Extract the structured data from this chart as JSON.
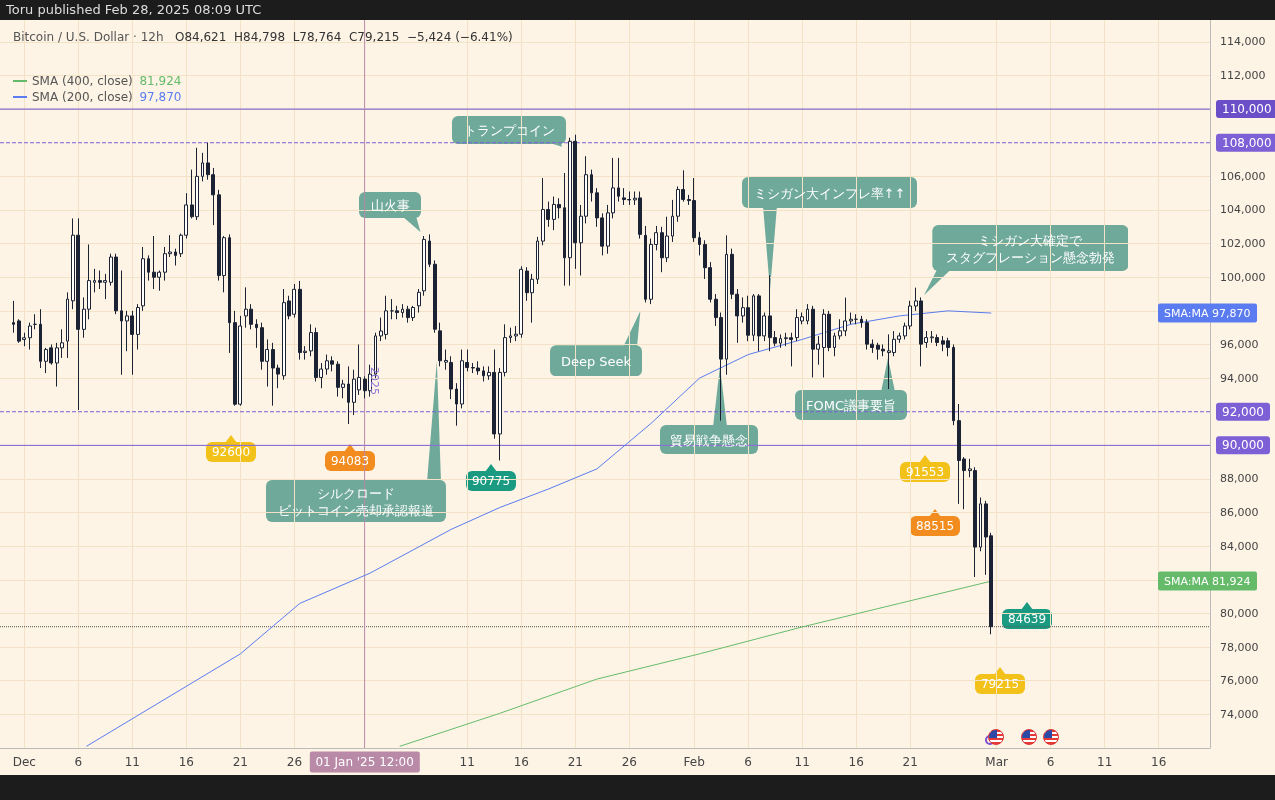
{
  "chart_data": {
    "type": "candlestick",
    "title": "Bitcoin / U.S. Dollar · 12h",
    "subtitle": "O84,621  H84,798  L78,764  C79,215  −5,424 (−6.41%)",
    "x": [
      "2024-11-30T00:00",
      "2024-11-30T12:00",
      "2024-12-01T00:00",
      "2024-12-01T12:00",
      "2024-12-02T00:00",
      "2024-12-02T12:00",
      "2024-12-03T00:00",
      "2024-12-03T12:00",
      "2024-12-04T00:00",
      "2024-12-04T12:00",
      "2024-12-05T00:00",
      "2024-12-05T12:00",
      "2024-12-06T00:00",
      "2024-12-06T12:00",
      "2024-12-07T00:00",
      "2024-12-07T12:00",
      "2024-12-08T00:00",
      "2024-12-08T12:00",
      "2024-12-09T00:00",
      "2024-12-09T12:00",
      "2024-12-10T00:00",
      "2024-12-10T12:00",
      "2024-12-11T00:00",
      "2024-12-11T12:00",
      "2024-12-12T00:00",
      "2024-12-12T12:00",
      "2024-12-13T00:00",
      "2024-12-13T12:00",
      "2024-12-14T00:00",
      "2024-12-14T12:00",
      "2024-12-15T00:00",
      "2024-12-15T12:00",
      "2024-12-16T00:00",
      "2024-12-16T12:00",
      "2024-12-17T00:00",
      "2024-12-17T12:00",
      "2024-12-18T00:00",
      "2024-12-18T12:00",
      "2024-12-19T00:00",
      "2024-12-19T12:00",
      "2024-12-20T00:00",
      "2024-12-20T12:00",
      "2024-12-21T00:00",
      "2024-12-21T12:00",
      "2024-12-22T00:00",
      "2024-12-22T12:00",
      "2024-12-23T00:00",
      "2024-12-23T12:00",
      "2024-12-24T00:00",
      "2024-12-24T12:00",
      "2024-12-25T00:00",
      "2024-12-25T12:00",
      "2024-12-26T00:00",
      "2024-12-26T12:00",
      "2024-12-27T00:00",
      "2024-12-27T12:00",
      "2024-12-28T00:00",
      "2024-12-28T12:00",
      "2024-12-29T00:00",
      "2024-12-29T12:00",
      "2024-12-30T00:00",
      "2024-12-30T12:00",
      "2024-12-31T00:00",
      "2024-12-31T12:00",
      "2025-01-01T00:00",
      "2025-01-01T12:00",
      "2025-01-02T00:00",
      "2025-01-02T12:00",
      "2025-01-03T00:00",
      "2025-01-03T12:00",
      "2025-01-04T00:00",
      "2025-01-04T12:00",
      "2025-01-05T00:00",
      "2025-01-05T12:00",
      "2025-01-06T00:00",
      "2025-01-06T12:00",
      "2025-01-07T00:00",
      "2025-01-07T12:00",
      "2025-01-08T00:00",
      "2025-01-08T12:00",
      "2025-01-09T00:00",
      "2025-01-09T12:00",
      "2025-01-10T00:00",
      "2025-01-10T12:00",
      "2025-01-11T00:00",
      "2025-01-11T12:00",
      "2025-01-12T00:00",
      "2025-01-12T12:00",
      "2025-01-13T00:00",
      "2025-01-13T12:00",
      "2025-01-14T00:00",
      "2025-01-14T12:00",
      "2025-01-15T00:00",
      "2025-01-15T12:00",
      "2025-01-16T00:00",
      "2025-01-16T12:00",
      "2025-01-17T00:00",
      "2025-01-17T12:00",
      "2025-01-18T00:00",
      "2025-01-18T12:00",
      "2025-01-19T00:00",
      "2025-01-19T12:00",
      "2025-01-20T00:00",
      "2025-01-20T12:00",
      "2025-01-21T00:00",
      "2025-01-21T12:00",
      "2025-01-22T00:00",
      "2025-01-22T12:00",
      "2025-01-23T00:00",
      "2025-01-23T12:00",
      "2025-01-24T00:00",
      "2025-01-24T12:00",
      "2025-01-25T00:00",
      "2025-01-25T12:00",
      "2025-01-26T00:00",
      "2025-01-26T12:00",
      "2025-01-27T00:00",
      "2025-01-27T12:00",
      "2025-01-28T00:00",
      "2025-01-28T12:00",
      "2025-01-29T00:00",
      "2025-01-29T12:00",
      "2025-01-30T00:00",
      "2025-01-30T12:00",
      "2025-01-31T00:00",
      "2025-01-31T12:00",
      "2025-02-01T00:00",
      "2025-02-01T12:00",
      "2025-02-02T00:00",
      "2025-02-02T12:00",
      "2025-02-03T00:00",
      "2025-02-03T12:00",
      "2025-02-04T00:00",
      "2025-02-04T12:00",
      "2025-02-05T00:00",
      "2025-02-05T12:00",
      "2025-02-06T00:00",
      "2025-02-06T12:00",
      "2025-02-07T00:00",
      "2025-02-07T12:00",
      "2025-02-08T00:00",
      "2025-02-08T12:00",
      "2025-02-09T00:00",
      "2025-02-09T12:00",
      "2025-02-10T00:00",
      "2025-02-10T12:00",
      "2025-02-11T00:00",
      "2025-02-11T12:00",
      "2025-02-12T00:00",
      "2025-02-12T12:00",
      "2025-02-13T00:00",
      "2025-02-13T12:00",
      "2025-02-14T00:00",
      "2025-02-14T12:00",
      "2025-02-15T00:00",
      "2025-02-15T12:00",
      "2025-02-16T00:00",
      "2025-02-16T12:00",
      "2025-02-17T00:00",
      "2025-02-17T12:00",
      "2025-02-18T00:00",
      "2025-02-18T12:00",
      "2025-02-19T00:00",
      "2025-02-19T12:00",
      "2025-02-20T00:00",
      "2025-02-20T12:00",
      "2025-02-21T00:00",
      "2025-02-21T12:00",
      "2025-02-22T00:00",
      "2025-02-22T12:00",
      "2025-02-23T00:00",
      "2025-02-23T12:00",
      "2025-02-24T00:00",
      "2025-02-24T12:00",
      "2025-02-25T00:00",
      "2025-02-25T12:00",
      "2025-02-26T00:00",
      "2025-02-26T12:00",
      "2025-02-27T00:00",
      "2025-02-27T12:00",
      "2025-02-28T00:00",
      "2025-02-28T12:00"
    ],
    "ohlc": [
      [
        97300,
        98590,
        96700,
        97200
      ],
      [
        97400,
        97500,
        96100,
        96200
      ],
      [
        96300,
        96700,
        95900,
        96400
      ],
      [
        96400,
        97300,
        95700,
        97100
      ],
      [
        97200,
        97800,
        96900,
        97200
      ],
      [
        97200,
        98100,
        94600,
        95000
      ],
      [
        95000,
        95800,
        94300,
        95700
      ],
      [
        95800,
        96000,
        94800,
        94900
      ],
      [
        94900,
        96100,
        93500,
        95800
      ],
      [
        95800,
        96900,
        95200,
        96100
      ],
      [
        96200,
        99100,
        95200,
        98700
      ],
      [
        98600,
        103500,
        98100,
        102500
      ],
      [
        102500,
        103500,
        92100,
        96900
      ],
      [
        96900,
        98800,
        96400,
        98100
      ],
      [
        98100,
        101950,
        97500,
        99800
      ],
      [
        99700,
        100500,
        99100,
        99800
      ],
      [
        99800,
        100400,
        99300,
        99700
      ],
      [
        99700,
        100200,
        98700,
        99800
      ],
      [
        99700,
        101400,
        99500,
        101200
      ],
      [
        101200,
        101400,
        97800,
        98000
      ],
      [
        98000,
        100400,
        94200,
        97400
      ],
      [
        97400,
        98000,
        95600,
        97700
      ],
      [
        97700,
        98000,
        94200,
        96600
      ],
      [
        96600,
        98400,
        95700,
        98200
      ],
      [
        98300,
        101800,
        98000,
        101100
      ],
      [
        101100,
        101300,
        99800,
        100300
      ],
      [
        100300,
        102450,
        99300,
        100000
      ],
      [
        100000,
        100400,
        99200,
        100300
      ],
      [
        100300,
        101800,
        99800,
        101400
      ],
      [
        101400,
        102500,
        101200,
        101500
      ],
      [
        101500,
        101700,
        100700,
        101300
      ],
      [
        101400,
        102600,
        101200,
        102500
      ],
      [
        102500,
        105000,
        102300,
        104300
      ],
      [
        104300,
        106400,
        103500,
        103600
      ],
      [
        103600,
        107700,
        103400,
        106000
      ],
      [
        106000,
        107400,
        105700,
        106800
      ],
      [
        106800,
        108000,
        105800,
        106100
      ],
      [
        106100,
        106500,
        103100,
        104900
      ],
      [
        104900,
        105200,
        99800,
        100100
      ],
      [
        100100,
        102450,
        99100,
        102350
      ],
      [
        102350,
        102550,
        95500,
        97300
      ],
      [
        97300,
        98000,
        92360,
        92450
      ],
      [
        92450,
        97700,
        92360,
        97100
      ],
      [
        97700,
        99400,
        97000,
        98100
      ],
      [
        98100,
        98400,
        96900,
        97200
      ],
      [
        97200,
        97500,
        95800,
        97000
      ],
      [
        97000,
        97300,
        94500,
        95000
      ],
      [
        95000,
        96300,
        93500,
        95700
      ],
      [
        95700,
        96100,
        92360,
        94600
      ],
      [
        94600,
        94800,
        93400,
        94240
      ],
      [
        94140,
        99300,
        93900,
        98490
      ],
      [
        98590,
        98900,
        97500,
        97700
      ],
      [
        97800,
        99600,
        97600,
        99280
      ],
      [
        99280,
        99780,
        95100,
        95520
      ],
      [
        95520,
        95900,
        95100,
        95600
      ],
      [
        95620,
        97200,
        95300,
        96710
      ],
      [
        96710,
        97000,
        93800,
        94040
      ],
      [
        94040,
        94900,
        93400,
        94540
      ],
      [
        94540,
        95400,
        94200,
        95030
      ],
      [
        95030,
        95300,
        94400,
        94830
      ],
      [
        94830,
        95000,
        92900,
        93450
      ],
      [
        93450,
        93900,
        92800,
        93650
      ],
      [
        93650,
        94700,
        91270,
        92560
      ],
      [
        92560,
        94500,
        91800,
        93940
      ],
      [
        93300,
        96000,
        93000,
        94040
      ],
      [
        93940,
        94100,
        92800,
        93250
      ],
      [
        93250,
        94800,
        92900,
        94240
      ],
      [
        94240,
        96700,
        94000,
        96510
      ],
      [
        96510,
        97600,
        96200,
        96800
      ],
      [
        96600,
        98900,
        96300,
        98000
      ],
      [
        98000,
        98700,
        97500,
        98000
      ],
      [
        98000,
        98300,
        97500,
        97900
      ],
      [
        97900,
        98400,
        97600,
        98100
      ],
      [
        98100,
        98300,
        97300,
        97600
      ],
      [
        97600,
        98300,
        97400,
        98200
      ],
      [
        98300,
        99300,
        97900,
        99100
      ],
      [
        99190,
        102450,
        98900,
        102250
      ],
      [
        102150,
        102550,
        100600,
        100770
      ],
      [
        100770,
        101000,
        96700,
        96910
      ],
      [
        96810,
        97300,
        94700,
        95030
      ],
      [
        94950,
        95700,
        94500,
        95050
      ],
      [
        94930,
        95300,
        92750,
        93350
      ],
      [
        93350,
        93700,
        91170,
        92460
      ],
      [
        92460,
        95700,
        92200,
        95030
      ],
      [
        94930,
        95700,
        94400,
        94630
      ],
      [
        94630,
        94900,
        94300,
        94600
      ],
      [
        94600,
        95000,
        94200,
        94430
      ],
      [
        94430,
        94700,
        93800,
        94140
      ],
      [
        94140,
        94700,
        93900,
        94340
      ],
      [
        94340,
        95700,
        90400,
        90680
      ],
      [
        90680,
        94600,
        89100,
        94340
      ],
      [
        94340,
        97200,
        94100,
        96410
      ],
      [
        96410,
        97000,
        96100,
        96510
      ],
      [
        96510,
        97100,
        96200,
        96610
      ],
      [
        96610,
        100650,
        96400,
        100470
      ],
      [
        100370,
        100600,
        98600,
        99080
      ],
      [
        99080,
        100200,
        97300,
        99880
      ],
      [
        99880,
        102400,
        99600,
        102150
      ],
      [
        102150,
        105900,
        101900,
        104030
      ],
      [
        104030,
        104500,
        103000,
        103440
      ],
      [
        103440,
        104800,
        102800,
        104330
      ],
      [
        104330,
        104700,
        103500,
        104130
      ],
      [
        104130,
        106200,
        99500,
        101160
      ],
      [
        101160,
        108300,
        99500,
        108085
      ],
      [
        108085,
        108480,
        100500,
        102050
      ],
      [
        102050,
        104300,
        100100,
        103630
      ],
      [
        103630,
        107200,
        103200,
        106100
      ],
      [
        106100,
        106400,
        104500,
        105020
      ],
      [
        105020,
        105300,
        103000,
        103530
      ],
      [
        103530,
        103800,
        101300,
        101850
      ],
      [
        101850,
        104300,
        101400,
        103830
      ],
      [
        103830,
        107100,
        103500,
        105315
      ],
      [
        105315,
        107100,
        104500,
        104820
      ],
      [
        104720,
        105300,
        104300,
        104620
      ],
      [
        104620,
        105100,
        104300,
        104600
      ],
      [
        104600,
        105100,
        104300,
        104700
      ],
      [
        104720,
        105100,
        102300,
        102550
      ],
      [
        102490,
        103050,
        98500,
        98690
      ],
      [
        98690,
        102300,
        98400,
        101950
      ],
      [
        101950,
        103050,
        101600,
        102650
      ],
      [
        102650,
        103000,
        100300,
        101160
      ],
      [
        101160,
        103600,
        100900,
        102450
      ],
      [
        102450,
        104600,
        102100,
        103630
      ],
      [
        103630,
        105400,
        103300,
        105220
      ],
      [
        105220,
        106360,
        104500,
        104620
      ],
      [
        104620,
        104900,
        104300,
        104560
      ],
      [
        104560,
        105900,
        102100,
        102350
      ],
      [
        102350,
        102700,
        101300,
        101950
      ],
      [
        101950,
        102200,
        99900,
        100570
      ],
      [
        100570,
        100900,
        98500,
        98690
      ],
      [
        98690,
        99000,
        97100,
        97600
      ],
      [
        97600,
        97900,
        91470,
        95130
      ],
      [
        95130,
        102490,
        94200,
        101360
      ],
      [
        101360,
        101700,
        98700,
        98990
      ],
      [
        98990,
        99300,
        96100,
        97700
      ],
      [
        97700,
        98800,
        97300,
        98190
      ],
      [
        98190,
        98900,
        96200,
        96550
      ],
      [
        96550,
        99000,
        96200,
        98890
      ],
      [
        98890,
        99000,
        95600,
        96510
      ],
      [
        96510,
        97900,
        96200,
        97700
      ],
      [
        97700,
        100110,
        95600,
        96410
      ],
      [
        96410,
        96800,
        95900,
        96080
      ],
      [
        96080,
        96600,
        95800,
        96350
      ],
      [
        96350,
        96700,
        95900,
        96400
      ],
      [
        96400,
        96700,
        94700,
        96300
      ],
      [
        96410,
        98100,
        96200,
        97600
      ],
      [
        97400,
        97900,
        97200,
        97650
      ],
      [
        97400,
        98400,
        97200,
        98100
      ],
      [
        98100,
        98300,
        94040,
        95720
      ],
      [
        95720,
        96500,
        94800,
        96020
      ],
      [
        95820,
        98100,
        94040,
        97800
      ],
      [
        97800,
        98000,
        95600,
        95820
      ],
      [
        95820,
        96700,
        95300,
        96510
      ],
      [
        96510,
        97500,
        96300,
        96810
      ],
      [
        96810,
        98790,
        96500,
        97400
      ],
      [
        97400,
        97900,
        97200,
        97500
      ],
      [
        97500,
        97800,
        97200,
        97500
      ],
      [
        97500,
        97700,
        97000,
        97300
      ],
      [
        97300,
        97500,
        95700,
        96020
      ],
      [
        96020,
        96300,
        95500,
        95820
      ],
      [
        95960,
        96100,
        95100,
        95720
      ],
      [
        95720,
        96000,
        95300,
        95620
      ],
      [
        95520,
        96600,
        93350,
        95620
      ],
      [
        95520,
        96800,
        95300,
        96310
      ],
      [
        96310,
        96700,
        96100,
        96510
      ],
      [
        96510,
        97300,
        96300,
        97100
      ],
      [
        97100,
        98600,
        96900,
        98290
      ],
      [
        98290,
        99380,
        98000,
        98590
      ],
      [
        98590,
        98800,
        94700,
        96020
      ],
      [
        96120,
        96800,
        95800,
        96410
      ],
      [
        96400,
        96800,
        96100,
        96450
      ],
      [
        96410,
        96600,
        95900,
        96120
      ],
      [
        96220,
        96500,
        95600,
        96020
      ],
      [
        96220,
        96400,
        95300,
        95820
      ],
      [
        95820,
        96000,
        91200,
        91470
      ],
      [
        91470,
        92460,
        86520,
        89100
      ],
      [
        89190,
        89300,
        86200,
        88500
      ],
      [
        88500,
        89200,
        88100,
        88600
      ],
      [
        88500,
        88700,
        82170,
        83950
      ],
      [
        83950,
        86900,
        83700,
        86520
      ],
      [
        86520,
        86700,
        82300,
        84550
      ],
      [
        84621,
        84798,
        78764,
        79215
      ]
    ],
    "series": [
      {
        "name": "SMA (400, close)",
        "type": "line",
        "color": "#66bb6a",
        "x": [
          "2025-01-04T18:00",
          "2025-01-14T00:00",
          "2025-01-23T00:00",
          "2025-02-01T12:00",
          "2025-02-11T00:00",
          "2025-02-20T00:00",
          "2025-02-28T12:00"
        ],
        "values": [
          72100,
          74060,
          76100,
          77600,
          79200,
          80600,
          81924
        ]
      },
      {
        "name": "SMA (200, close)",
        "type": "line",
        "color": "#5b7cf0",
        "x": [
          "2024-12-06T18:00",
          "2024-12-21T00:00",
          "2024-12-26T12:00",
          "2025-01-02T00:00",
          "2025-01-09T12:00",
          "2025-01-14T00:00",
          "2025-01-18T12:00",
          "2025-01-23T00:00",
          "2025-01-28T00:00",
          "2025-02-01T12:00",
          "2025-02-06T00:00",
          "2025-02-11T00:00",
          "2025-02-15T12:00",
          "2025-02-20T00:00",
          "2025-02-24T12:00",
          "2025-02-28T12:00"
        ],
        "values": [
          72100,
          77600,
          80600,
          82400,
          85000,
          86300,
          87400,
          88600,
          91300,
          94000,
          95400,
          96300,
          97200,
          97700,
          98000,
          97870
        ]
      }
    ],
    "ref_lines": [
      {
        "axis": "y",
        "value": 110000,
        "label": "110,000",
        "color": "#6a4fc8",
        "line_style": "solid"
      },
      {
        "axis": "y",
        "value": 108000,
        "label": "108,000",
        "color": "#7d5fd6",
        "line_style": "dashed"
      },
      {
        "axis": "y",
        "value": 92000,
        "label": "92,000",
        "color": "#7d5fd6",
        "line_style": "dashed"
      },
      {
        "axis": "y",
        "value": 90000,
        "label": "90,000",
        "color": "#7d5fd6",
        "line_style": "solid"
      },
      {
        "axis": "y",
        "value": 79215,
        "label": null,
        "color": "#555555",
        "line_style": "dotted"
      },
      {
        "axis": "x",
        "value": "2025-01-01T12:00",
        "label": "01 Jan '25  12:00",
        "color": "#b98aa8",
        "line_style": "solid"
      }
    ],
    "annotations": [
      "Toru published Feb 28, 2025 08:09 UTC",
      {
        "text": "山火事",
        "x": "2025-01-07T00:00",
        "y": 102400
      },
      "トランプコイン",
      "Deep Seek",
      "貿易戦争懸念",
      "ミシガン大インフレ率↑↑",
      "ミシガン大確定で",
      "スタグフレーション懸念勃発",
      "FOMC議事要旨",
      "シルクロード",
      "ビットコイン売却承認報道",
      {
        "text": "2025",
        "x": "2025-01-01T12:00",
        "y": 93800
      },
      "92600",
      "94083",
      "90775",
      "91553",
      "88515",
      "84639",
      "79215",
      "SMA:MA  97,870",
      "SMA:MA  81,924",
      "81,924",
      "97,870"
    ],
    "xlim": [
      "2024-11-28T18:00",
      "2025-03-20T18:00"
    ],
    "ylim": [
      72000,
      115300
    ],
    "xticks": [
      {
        "value": "2024-12-01",
        "label": "Dec"
      },
      {
        "value": "2024-12-06",
        "label": "6"
      },
      {
        "value": "2024-12-11",
        "label": "11"
      },
      {
        "value": "2024-12-16",
        "label": "16"
      },
      {
        "value": "2024-12-21",
        "label": "21"
      },
      {
        "value": "2024-12-26",
        "label": "26"
      },
      {
        "value": "2025-01-11",
        "label": "11"
      },
      {
        "value": "2025-01-16",
        "label": "16"
      },
      {
        "value": "2025-01-21",
        "label": "21"
      },
      {
        "value": "2025-01-26",
        "label": "26"
      },
      {
        "value": "2025-02-01",
        "label": "Feb"
      },
      {
        "value": "2025-02-06",
        "label": "6"
      },
      {
        "value": "2025-02-11",
        "label": "11"
      },
      {
        "value": "2025-02-16",
        "label": "16"
      },
      {
        "value": "2025-02-21",
        "label": "21"
      },
      {
        "value": "2025-03-01",
        "label": "Mar"
      },
      {
        "value": "2025-03-06",
        "label": "6"
      },
      {
        "value": "2025-03-11",
        "label": "11"
      },
      {
        "value": "2025-03-16",
        "label": "16"
      }
    ],
    "yticks": [
      {
        "value": 74000,
        "label": "74,000"
      },
      {
        "value": 76000,
        "label": "76,000"
      },
      {
        "value": 78000,
        "label": "78,000"
      },
      {
        "value": 80000,
        "label": "80,000"
      },
      {
        "value": 82000,
        "label": null
      },
      {
        "value": 84000,
        "label": "84,000"
      },
      {
        "value": 86000,
        "label": "86,000"
      },
      {
        "value": 88000,
        "label": "88,000"
      },
      {
        "value": 90000,
        "label": null
      },
      {
        "value": 94000,
        "label": "94,000"
      },
      {
        "value": 96000,
        "label": "96,000"
      },
      {
        "value": 98000,
        "label": null
      },
      {
        "value": 100000,
        "label": "100,000"
      },
      {
        "value": 102000,
        "label": "102,000"
      },
      {
        "value": 104000,
        "label": "104,000"
      },
      {
        "value": 106000,
        "label": "106,000"
      },
      {
        "value": 110000,
        "label": null
      },
      {
        "value": 112000,
        "label": "112,000"
      },
      {
        "value": 114000,
        "label": "114,000"
      }
    ],
    "grid": true,
    "legend": "top left",
    "marker": "none"
  }
}
